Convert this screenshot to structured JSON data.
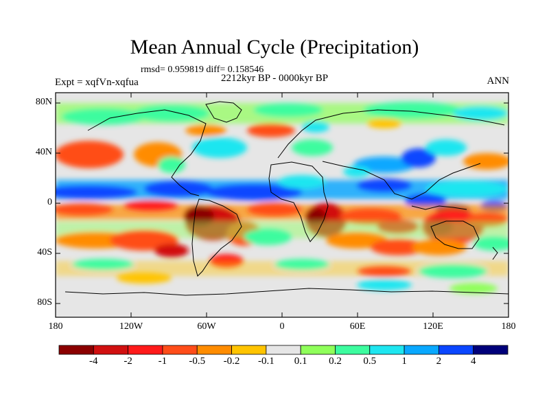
{
  "title": "Mean Annual Cycle (Precipitation)",
  "stats": "rmsd= 0.959819 diff= 0.158546",
  "subtitle": "2212kyr BP - 0000kyr BP",
  "experiment": "Expt = xqfVn-xqfua",
  "season": "ANN",
  "lat_ticks": [
    "80N",
    "40N",
    "0",
    "40S",
    "80S"
  ],
  "lon_ticks": [
    "180",
    "120W",
    "60W",
    "0",
    "60E",
    "120E",
    "180"
  ],
  "colorbar": {
    "labels": [
      "-4",
      "-2",
      "-1",
      "-0.5",
      "-0.2",
      "-0.1",
      "0.1",
      "0.2",
      "0.5",
      "1",
      "2",
      "4"
    ],
    "colors": [
      "#8b0000",
      "#d11010",
      "#ff1a1a",
      "#ff4d19",
      "#ff8c00",
      "#ffc400",
      "#e6e6e6",
      "#8fff5a",
      "#3dfc9f",
      "#1ee6f0",
      "#09a8ff",
      "#0a46ff",
      "#00007a"
    ]
  }
}
